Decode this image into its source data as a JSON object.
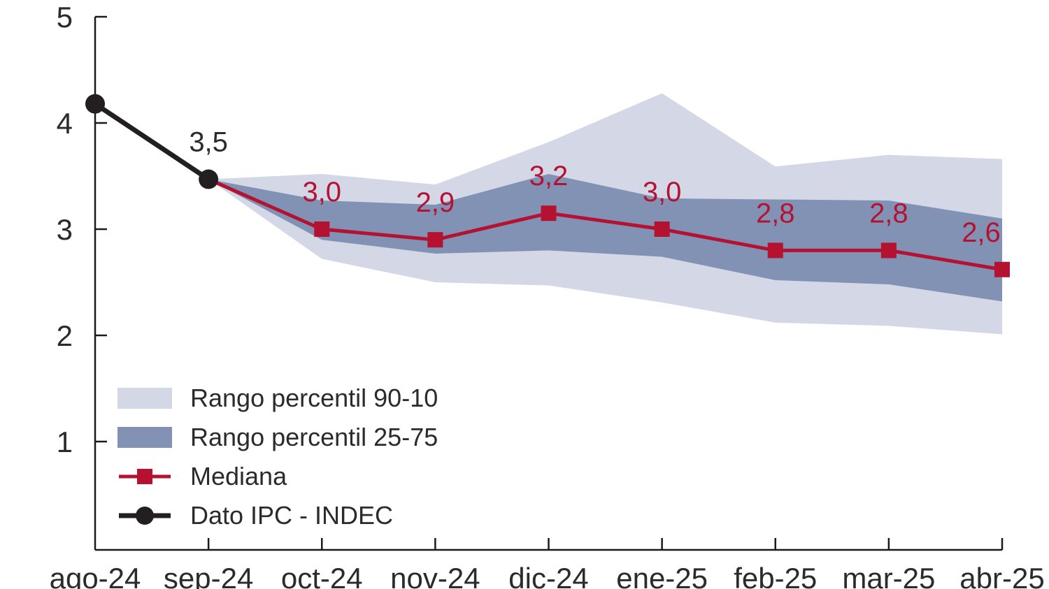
{
  "chart_data": {
    "type": "line",
    "title": "",
    "background": "#ffffff",
    "axis_color": "#1a1a1a",
    "text_color": "#2b2b2b",
    "grid": false,
    "legend_position": "inside-bottom-left",
    "categories": [
      "ago-24",
      "sep-24",
      "oct-24",
      "nov-24",
      "dic-24",
      "ene-25",
      "feb-25",
      "mar-25",
      "abr-25"
    ],
    "y_axis": {
      "ticks": [
        "5",
        "4",
        "3",
        "2",
        "1"
      ],
      "tick_values": [
        5,
        4,
        3,
        2,
        1
      ],
      "min": 0,
      "max": 5
    },
    "series": [
      {
        "name": "Rango percentil 90-10",
        "type": "band",
        "color": "#d4d7e6",
        "upper": [
          null,
          3.47,
          3.52,
          3.42,
          3.82,
          4.28,
          3.59,
          3.7,
          3.66
        ],
        "lower": [
          null,
          3.47,
          2.72,
          2.5,
          2.47,
          2.31,
          2.12,
          2.09,
          2.01
        ]
      },
      {
        "name": "Rango percentil 25-75",
        "type": "band",
        "color": "#8192b4",
        "upper": [
          null,
          3.47,
          3.27,
          3.23,
          3.52,
          3.29,
          3.28,
          3.27,
          3.1
        ],
        "lower": [
          null,
          3.47,
          2.9,
          2.77,
          2.8,
          2.74,
          2.52,
          2.48,
          2.32
        ]
      },
      {
        "name": "Mediana",
        "type": "line",
        "marker": "square",
        "color": "#b51231",
        "line_width": 5,
        "values": [
          null,
          3.47,
          3.0,
          2.9,
          3.15,
          3.0,
          2.8,
          2.8,
          2.62
        ],
        "markers": [
          false,
          false,
          true,
          true,
          true,
          true,
          true,
          true,
          true
        ],
        "labels": [
          null,
          null,
          "3,0",
          "2,9",
          "3,2",
          "3,0",
          "2,8",
          "2,8",
          "2,6"
        ]
      },
      {
        "name": "Dato IPC - INDEC",
        "type": "line",
        "marker": "circle",
        "color": "#231f20",
        "label_color": "#2b2b2b",
        "line_width": 7,
        "values": [
          4.18,
          3.47,
          null,
          null,
          null,
          null,
          null,
          null,
          null
        ],
        "markers": [
          true,
          true,
          false,
          false,
          false,
          false,
          false,
          false,
          false
        ],
        "labels": [
          null,
          "3,5",
          null,
          null,
          null,
          null,
          null,
          null,
          null
        ]
      }
    ]
  }
}
